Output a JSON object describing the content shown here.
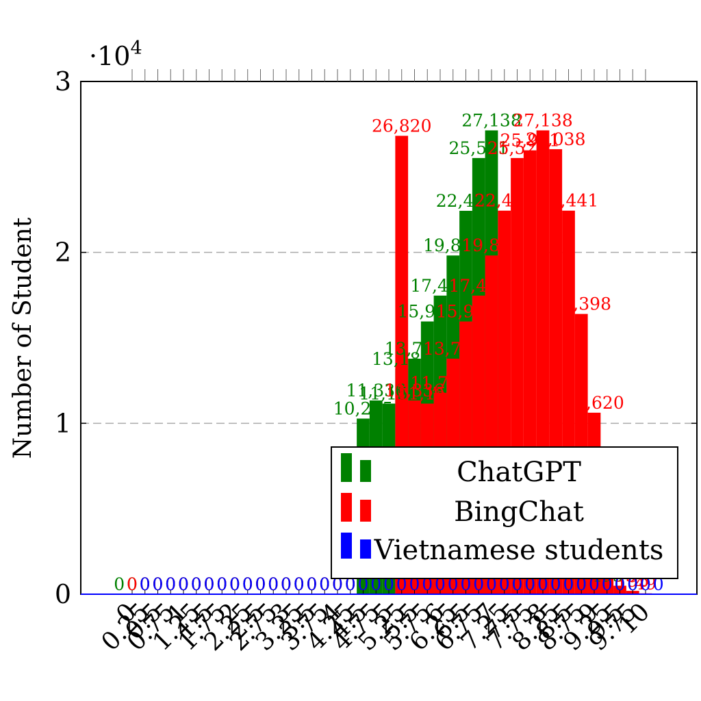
{
  "chart_data": {
    "type": "bar",
    "ylabel": "Number of Student",
    "xlabel": "",
    "y_multiplier_label": "·10",
    "y_multiplier_exponent": "4",
    "ylim": [
      0,
      30000
    ],
    "y_ticks": [
      0,
      1,
      2,
      3
    ],
    "grid": "horizontal-dashed",
    "legend_position": "lower-right",
    "categories": [
      "0",
      "0.25",
      "0.5",
      "0.75",
      "1",
      "1.25",
      "1.5",
      "1.75",
      "2",
      "2.25",
      "2.5",
      "2.75",
      "3",
      "3.25",
      "3.5",
      "3.75",
      "4",
      "4.25",
      "4.5",
      "4.75",
      "5",
      "5.25",
      "5.5",
      "5.75",
      "6",
      "6.25",
      "6.5",
      "6.75",
      "7",
      "7.25",
      "7.5",
      "7.75",
      "8",
      "8.25",
      "8.5",
      "8.75",
      "9",
      "9.25",
      "9.5",
      "9.75",
      "10"
    ],
    "series": [
      {
        "name": "ChatGPT",
        "color": "#008000",
        "values": [
          0,
          0,
          0,
          0,
          0,
          0,
          0,
          0,
          0,
          0,
          0,
          0,
          0,
          0,
          0,
          0,
          0,
          0,
          0,
          10275,
          11336,
          11152,
          13182,
          13782,
          15959,
          17472,
          19818,
          22432,
          25521,
          27138,
          0,
          0,
          0,
          0,
          0,
          0,
          0,
          1404,
          495,
          0,
          0
        ],
        "labels": [
          "0",
          "0",
          "0",
          "0",
          "0",
          "0",
          "0",
          "0",
          "0",
          "0",
          "0",
          "0",
          "0",
          "0",
          "0",
          "0",
          "0",
          "0",
          "0",
          "10,275",
          "11,336",
          "11,152",
          "13,182",
          "13,782",
          "15,959",
          "17,472",
          "19,818",
          "22,432",
          "25,521",
          "27,138",
          "0",
          "0",
          "0",
          "0",
          "0",
          "0",
          "0",
          "1,404",
          "495",
          "0",
          "0"
        ]
      },
      {
        "name": "BingChat",
        "color": "#ff0000",
        "values": [
          0,
          0,
          0,
          0,
          0,
          0,
          0,
          0,
          0,
          0,
          0,
          0,
          0,
          0,
          0,
          0,
          0,
          0,
          0,
          0,
          0,
          26820,
          11336,
          11152,
          11782,
          13782,
          15959,
          17472,
          19818,
          22441,
          25521,
          25971,
          27138,
          26038,
          22441,
          16398,
          10620,
          1404,
          495,
          195,
          49
        ],
        "labels": [
          "0",
          "0",
          "0",
          "0",
          "0",
          "0",
          "0",
          "0",
          "0",
          "0",
          "0",
          "0",
          "0",
          "0",
          "0",
          "0",
          "0",
          "0",
          "0",
          "0",
          "0",
          "26,820",
          "11,336",
          "11,152",
          "11,782",
          "13,782",
          "15,959",
          "17,472",
          "19,818",
          "22,441",
          "25,521",
          "25,971",
          "27,138",
          "26,038",
          "22,441",
          "16,398",
          "10,620",
          "1,404",
          "495",
          "195",
          "49"
        ]
      },
      {
        "name": "Vietnamese students",
        "color": "#0000ff",
        "values": [
          0,
          0,
          0,
          0,
          0,
          0,
          0,
          0,
          0,
          0,
          0,
          0,
          0,
          0,
          0,
          0,
          0,
          0,
          0,
          0,
          0,
          0,
          0,
          0,
          0,
          0,
          0,
          0,
          0,
          0,
          0,
          0,
          0,
          0,
          0,
          0,
          0,
          0,
          0,
          0,
          0
        ],
        "labels": [
          "0",
          "0",
          "0",
          "0",
          "0",
          "0",
          "0",
          "0",
          "0",
          "0",
          "0",
          "0",
          "0",
          "0",
          "0",
          "0",
          "0",
          "0",
          "0",
          "0",
          "0",
          "0",
          "0",
          "0",
          "0",
          "0",
          "0",
          "0",
          "0",
          "0",
          "0",
          "0",
          "0",
          "0",
          "0",
          "0",
          "0",
          "0",
          "0",
          "0",
          "0"
        ]
      }
    ]
  }
}
